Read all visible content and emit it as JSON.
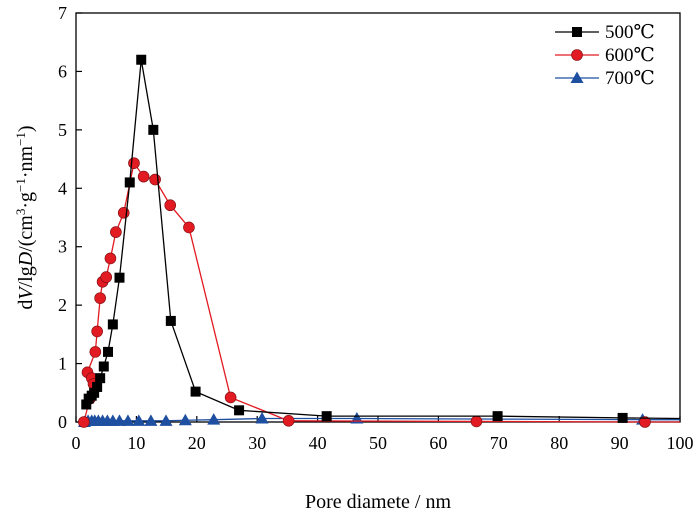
{
  "chart_data": {
    "type": "line",
    "xlabel": "Pore diamete / nm",
    "ylabel_parts": [
      "d",
      "V",
      "/lg",
      "D",
      "/(cm",
      "3",
      "·g",
      "−1",
      "·nm",
      "−1",
      ")"
    ],
    "xlim": [
      0,
      100
    ],
    "ylim": [
      0,
      7
    ],
    "xticks": [
      0,
      10,
      20,
      30,
      40,
      50,
      60,
      70,
      80,
      90,
      100
    ],
    "yticks": [
      0,
      1,
      2,
      3,
      4,
      5,
      6,
      7
    ],
    "grid": false,
    "legend_position": "top-right",
    "series": [
      {
        "name": "500℃",
        "color": "#000000",
        "marker": "square",
        "x": [
          1.7,
          2.1,
          2.6,
          3.0,
          3.5,
          4.0,
          4.6,
          5.3,
          6.1,
          7.2,
          8.9,
          10.8,
          12.8,
          15.7,
          19.8,
          27.0,
          41.5,
          69.8,
          90.5
        ],
        "y": [
          0.3,
          0.4,
          0.45,
          0.5,
          0.6,
          0.75,
          0.95,
          1.2,
          1.67,
          2.47,
          4.1,
          6.2,
          5.0,
          1.73,
          0.52,
          0.2,
          0.1,
          0.1,
          0.07
        ]
      },
      {
        "name": "600℃",
        "color": "#e21a22",
        "marker": "circle",
        "x": [
          1.3,
          1.9,
          2.3,
          2.6,
          2.9,
          3.2,
          3.5,
          4.0,
          4.4,
          5.0,
          5.7,
          6.6,
          7.9,
          9.6,
          11.2,
          13.1,
          15.6,
          18.7,
          25.6,
          35.2,
          66.3,
          94.2
        ],
        "y": [
          0.0,
          0.85,
          0.4,
          0.75,
          0.65,
          1.2,
          1.55,
          2.12,
          2.4,
          2.48,
          2.8,
          3.25,
          3.58,
          4.43,
          4.2,
          4.15,
          3.71,
          3.33,
          0.42,
          0.02,
          0.01,
          0.0
        ],
        "order": [
          0,
          2,
          4,
          3,
          1,
          5,
          6,
          7,
          8,
          9,
          10,
          11,
          12,
          13,
          14,
          15,
          16,
          17,
          18,
          19,
          20,
          21
        ]
      },
      {
        "name": "700℃",
        "color": "#1f4fa0",
        "marker": "triangle",
        "x": [
          1.4,
          2.0,
          2.6,
          3.1,
          3.7,
          4.4,
          5.2,
          6.1,
          7.2,
          8.6,
          10.4,
          12.4,
          14.9,
          18.1,
          22.8,
          30.8,
          46.5,
          93.8
        ],
        "y": [
          0.0,
          0.02,
          0.02,
          0.02,
          0.02,
          0.02,
          0.02,
          0.02,
          0.02,
          0.02,
          0.02,
          0.02,
          0.02,
          0.03,
          0.04,
          0.06,
          0.06,
          0.04
        ]
      }
    ]
  }
}
